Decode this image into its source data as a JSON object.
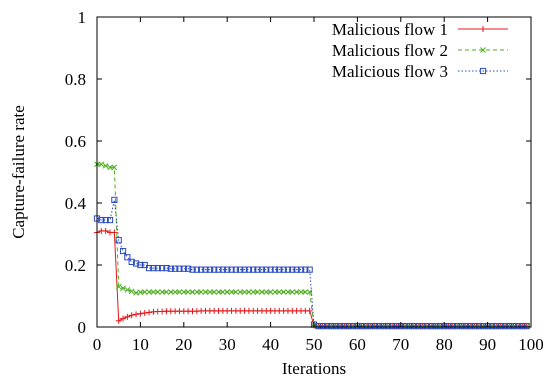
{
  "chart_data": {
    "type": "line",
    "title": "",
    "xlabel": "Iterations",
    "ylabel": "Capture-failure rate",
    "xlim": [
      0,
      100
    ],
    "ylim": [
      0,
      1
    ],
    "xticks": [
      "0",
      "10",
      "20",
      "30",
      "40",
      "50",
      "60",
      "70",
      "80",
      "90",
      "100"
    ],
    "yticks": [
      "0",
      "0.2",
      "0.4",
      "0.6",
      "0.8",
      "1"
    ],
    "grid": false,
    "legend_position": "top-right",
    "series": [
      {
        "name": "Malicious flow 1",
        "color": "#e41a1c",
        "marker": "plus",
        "line": "solid",
        "x": [
          0,
          1,
          2,
          3,
          4,
          5,
          6,
          7,
          8,
          9,
          10,
          11,
          12,
          13,
          14,
          15,
          16,
          17,
          18,
          19,
          20,
          21,
          22,
          23,
          24,
          25,
          26,
          27,
          28,
          29,
          30,
          31,
          32,
          33,
          34,
          35,
          36,
          37,
          38,
          39,
          40,
          41,
          42,
          43,
          44,
          45,
          46,
          47,
          48,
          49,
          50,
          51,
          52,
          53,
          54,
          55,
          56,
          57,
          58,
          59,
          60,
          61,
          62,
          63,
          64,
          65,
          66,
          67,
          68,
          69,
          70,
          71,
          72,
          73,
          74,
          75,
          76,
          77,
          78,
          79,
          80,
          81,
          82,
          83,
          84,
          85,
          86,
          87,
          88,
          89,
          90,
          91,
          92,
          93,
          94,
          95,
          96,
          97,
          98,
          99
        ],
        "y": [
          0.305,
          0.31,
          0.31,
          0.305,
          0.305,
          0.02,
          0.027,
          0.033,
          0.038,
          0.041,
          0.043,
          0.045,
          0.047,
          0.049,
          0.05,
          0.05,
          0.051,
          0.051,
          0.051,
          0.051,
          0.051,
          0.051,
          0.051,
          0.051,
          0.052,
          0.052,
          0.052,
          0.052,
          0.052,
          0.052,
          0.052,
          0.052,
          0.052,
          0.052,
          0.052,
          0.052,
          0.052,
          0.052,
          0.052,
          0.052,
          0.052,
          0.052,
          0.052,
          0.052,
          0.052,
          0.052,
          0.052,
          0.052,
          0.052,
          0.052,
          0.005,
          0.002,
          0.002,
          0.002,
          0.002,
          0.002,
          0.002,
          0.002,
          0.002,
          0.002,
          0.002,
          0.002,
          0.002,
          0.002,
          0.002,
          0.002,
          0.002,
          0.002,
          0.002,
          0.002,
          0.002,
          0.002,
          0.002,
          0.002,
          0.002,
          0.002,
          0.002,
          0.002,
          0.002,
          0.002,
          0.002,
          0.002,
          0.002,
          0.002,
          0.002,
          0.002,
          0.002,
          0.002,
          0.002,
          0.002,
          0.002,
          0.002,
          0.002,
          0.002,
          0.002,
          0.002,
          0.002,
          0.002,
          0.002,
          0.002
        ]
      },
      {
        "name": "Malicious flow 2",
        "color": "#4daf20",
        "marker": "cross",
        "line": "dashed",
        "x": [
          0,
          1,
          2,
          3,
          4,
          5,
          6,
          7,
          8,
          9,
          10,
          11,
          12,
          13,
          14,
          15,
          16,
          17,
          18,
          19,
          20,
          21,
          22,
          23,
          24,
          25,
          26,
          27,
          28,
          29,
          30,
          31,
          32,
          33,
          34,
          35,
          36,
          37,
          38,
          39,
          40,
          41,
          42,
          43,
          44,
          45,
          46,
          47,
          48,
          49,
          50,
          51,
          52,
          53,
          54,
          55,
          56,
          57,
          58,
          59,
          60,
          61,
          62,
          63,
          64,
          65,
          66,
          67,
          68,
          69,
          70,
          71,
          72,
          73,
          74,
          75,
          76,
          77,
          78,
          79,
          80,
          81,
          82,
          83,
          84,
          85,
          86,
          87,
          88,
          89,
          90,
          91,
          92,
          93,
          94,
          95,
          96,
          97,
          98,
          99
        ],
        "y": [
          0.525,
          0.525,
          0.52,
          0.515,
          0.515,
          0.13,
          0.125,
          0.12,
          0.115,
          0.11,
          0.112,
          0.113,
          0.113,
          0.113,
          0.113,
          0.113,
          0.113,
          0.113,
          0.113,
          0.113,
          0.113,
          0.113,
          0.113,
          0.113,
          0.113,
          0.113,
          0.113,
          0.113,
          0.113,
          0.113,
          0.113,
          0.113,
          0.113,
          0.113,
          0.113,
          0.113,
          0.113,
          0.113,
          0.113,
          0.113,
          0.113,
          0.113,
          0.113,
          0.113,
          0.113,
          0.113,
          0.113,
          0.113,
          0.113,
          0.113,
          0.005,
          0.002,
          0.002,
          0.002,
          0.002,
          0.002,
          0.002,
          0.002,
          0.002,
          0.002,
          0.002,
          0.002,
          0.002,
          0.002,
          0.002,
          0.002,
          0.002,
          0.002,
          0.002,
          0.002,
          0.002,
          0.002,
          0.002,
          0.002,
          0.002,
          0.002,
          0.002,
          0.002,
          0.002,
          0.002,
          0.002,
          0.002,
          0.002,
          0.002,
          0.002,
          0.002,
          0.002,
          0.002,
          0.002,
          0.002,
          0.002,
          0.002,
          0.002,
          0.002,
          0.002,
          0.002,
          0.002,
          0.002,
          0.002,
          0.002
        ]
      },
      {
        "name": "Malicious flow 3",
        "color": "#2a4bbf",
        "marker": "square",
        "line": "dotted",
        "x": [
          0,
          1,
          2,
          3,
          4,
          5,
          6,
          7,
          8,
          9,
          10,
          11,
          12,
          13,
          14,
          15,
          16,
          17,
          18,
          19,
          20,
          21,
          22,
          23,
          24,
          25,
          26,
          27,
          28,
          29,
          30,
          31,
          32,
          33,
          34,
          35,
          36,
          37,
          38,
          39,
          40,
          41,
          42,
          43,
          44,
          45,
          46,
          47,
          48,
          49,
          50,
          51,
          52,
          53,
          54,
          55,
          56,
          57,
          58,
          59,
          60,
          61,
          62,
          63,
          64,
          65,
          66,
          67,
          68,
          69,
          70,
          71,
          72,
          73,
          74,
          75,
          76,
          77,
          78,
          79,
          80,
          81,
          82,
          83,
          84,
          85,
          86,
          87,
          88,
          89,
          90,
          91,
          92,
          93,
          94,
          95,
          96,
          97,
          98,
          99
        ],
        "y": [
          0.35,
          0.345,
          0.345,
          0.345,
          0.41,
          0.28,
          0.245,
          0.225,
          0.21,
          0.205,
          0.2,
          0.2,
          0.19,
          0.19,
          0.19,
          0.19,
          0.19,
          0.188,
          0.188,
          0.188,
          0.188,
          0.188,
          0.185,
          0.185,
          0.185,
          0.185,
          0.185,
          0.185,
          0.185,
          0.185,
          0.185,
          0.185,
          0.185,
          0.185,
          0.185,
          0.185,
          0.185,
          0.185,
          0.185,
          0.185,
          0.185,
          0.185,
          0.185,
          0.185,
          0.185,
          0.185,
          0.185,
          0.185,
          0.185,
          0.185,
          0.008,
          0.003,
          0.003,
          0.003,
          0.003,
          0.003,
          0.003,
          0.003,
          0.003,
          0.003,
          0.003,
          0.003,
          0.003,
          0.003,
          0.003,
          0.003,
          0.003,
          0.003,
          0.003,
          0.003,
          0.003,
          0.003,
          0.003,
          0.003,
          0.003,
          0.003,
          0.003,
          0.003,
          0.003,
          0.003,
          0.003,
          0.003,
          0.003,
          0.003,
          0.003,
          0.003,
          0.003,
          0.003,
          0.003,
          0.003,
          0.003,
          0.003,
          0.003,
          0.003,
          0.003,
          0.003,
          0.003,
          0.003,
          0.003,
          0.003
        ]
      }
    ]
  }
}
